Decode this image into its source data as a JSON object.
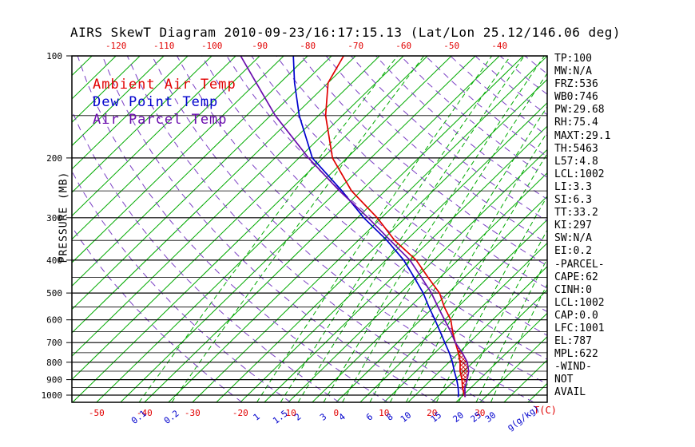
{
  "title": "AIRS SkewT Diagram 2010-09-23/16:17:15.13 (Lat/Lon 25.12/146.06 deg)",
  "chart_data": {
    "type": "line",
    "description": "Skew-T / log-P atmospheric sounding diagram",
    "axes": {
      "pressure_label": "PRESSURE (MB)",
      "pressure_ticks": [
        100,
        200,
        300,
        400,
        500,
        600,
        700,
        800,
        900,
        1000
      ],
      "pressure_lines": [
        100,
        150,
        200,
        250,
        300,
        350,
        400,
        450,
        500,
        550,
        600,
        650,
        700,
        750,
        800,
        850,
        900,
        950,
        1000
      ],
      "pressure_range": [
        100,
        1050
      ],
      "top_temp_ticks": [
        -120,
        -110,
        -100,
        -90,
        -80,
        -70,
        -60,
        -50,
        -40
      ],
      "bottom_temp_ticks": [
        -50,
        -40,
        -30,
        -20,
        -10,
        0,
        10,
        20,
        30
      ],
      "temp_unit_label": "T(C)",
      "mixing_unit_label": "g(g/kg)"
    },
    "isotherms_c": {
      "min": -135,
      "max": 45,
      "step": 5
    },
    "mixing_ratio_g_kg": [
      0.1,
      0.2,
      1,
      1.5,
      2,
      3,
      4,
      6,
      8,
      10,
      15,
      20,
      25,
      30
    ],
    "dry_adiabats_k": {
      "min": 250,
      "max": 470,
      "step": 10
    },
    "series": [
      {
        "name": "Ambient Air Temp",
        "color": "#E10000",
        "points_p_t": [
          [
            1013,
            25.8
          ],
          [
            1000,
            25.2
          ],
          [
            950,
            23.2
          ],
          [
            900,
            21.4
          ],
          [
            850,
            19.2
          ],
          [
            800,
            17.3
          ],
          [
            750,
            14.9
          ],
          [
            700,
            12.1
          ],
          [
            650,
            9.2
          ],
          [
            600,
            6.3
          ],
          [
            550,
            2.2
          ],
          [
            500,
            -1.8
          ],
          [
            450,
            -7.5
          ],
          [
            400,
            -13.7
          ],
          [
            350,
            -22.4
          ],
          [
            300,
            -30.9
          ],
          [
            250,
            -42.0
          ],
          [
            200,
            -53.0
          ],
          [
            150,
            -63.5
          ],
          [
            120,
            -70.0
          ],
          [
            100,
            -72.5
          ]
        ]
      },
      {
        "name": "Dew Point Temp",
        "color": "#0000CD",
        "points_p_t": [
          [
            1013,
            24.3
          ],
          [
            1000,
            24.0
          ],
          [
            950,
            22.3
          ],
          [
            900,
            20.3
          ],
          [
            850,
            18.0
          ],
          [
            800,
            15.7
          ],
          [
            750,
            13.0
          ],
          [
            700,
            9.9
          ],
          [
            650,
            6.6
          ],
          [
            600,
            3.0
          ],
          [
            550,
            -1.0
          ],
          [
            500,
            -5.2
          ],
          [
            450,
            -10.4
          ],
          [
            400,
            -16.3
          ],
          [
            350,
            -24.0
          ],
          [
            300,
            -33.7
          ],
          [
            250,
            -44.0
          ],
          [
            200,
            -57.2
          ],
          [
            150,
            -69.0
          ],
          [
            120,
            -77.0
          ],
          [
            100,
            -83.0
          ]
        ]
      },
      {
        "name": "Air Parcel Temp",
        "color": "#6A0DAD",
        "points_p_t": [
          [
            1013,
            25.8
          ],
          [
            1000,
            25.35
          ],
          [
            950,
            23.7
          ],
          [
            900,
            22.5
          ],
          [
            850,
            21.0
          ],
          [
            800,
            18.8
          ],
          [
            750,
            15.7
          ],
          [
            700,
            12.1
          ],
          [
            650,
            8.8
          ],
          [
            600,
            5.0
          ],
          [
            550,
            0.9
          ],
          [
            500,
            -3.5
          ],
          [
            450,
            -8.9
          ],
          [
            400,
            -15.0
          ],
          [
            350,
            -23.3
          ],
          [
            300,
            -32.8
          ],
          [
            250,
            -44.5
          ],
          [
            200,
            -58.0
          ],
          [
            150,
            -74.0
          ],
          [
            120,
            -85.0
          ],
          [
            100,
            -94.0
          ]
        ]
      }
    ],
    "cape_region": {
      "between": [
        "Ambient Air Temp",
        "Air Parcel Temp"
      ],
      "pressure_span": [
        1013,
        700
      ]
    },
    "colors": {
      "isotherm": "#00AA00",
      "mixing": "#00AA00",
      "adiabat": "#7B3FC4",
      "pressure_line": "#000000",
      "hatch": "#CC0000",
      "top_ticks": "#E10000",
      "bottom_ticks": "#E10000",
      "mixing_ticks": "#0000CD"
    }
  },
  "stats": {
    "lines": [
      "TP:100",
      "MW:N/A",
      "FRZ:536",
      "WB0:746",
      "PW:29.68",
      "RH:75.4",
      "MAXT:29.1",
      "TH:5463",
      "L57:4.8",
      "LCL:1002",
      "LI:3.3",
      "SI:6.3",
      "TT:33.2",
      "KI:297",
      "SW:N/A",
      "EI:0.2",
      "-PARCEL-",
      "CAPE:62",
      "CINH:0",
      "LCL:1002",
      "CAP:0.0",
      "LFC:1001",
      "EL:787",
      "MPL:622",
      "-WIND-",
      "NOT",
      "AVAIL"
    ]
  }
}
